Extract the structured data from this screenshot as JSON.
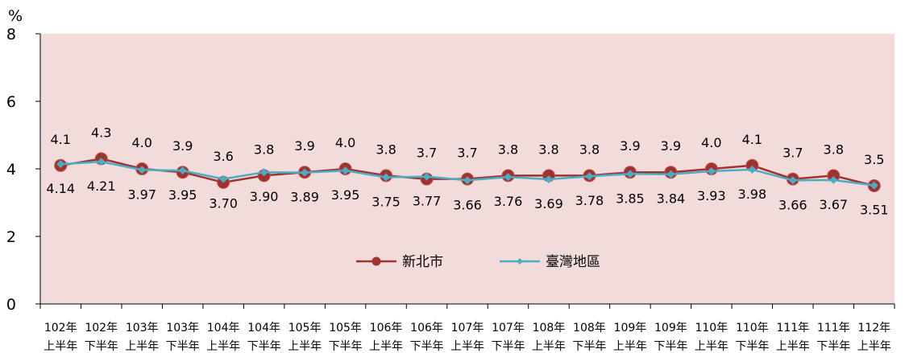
{
  "chart_data": {
    "type": "line",
    "unit": "%",
    "ylim": [
      0,
      8
    ],
    "yticks": [
      0,
      2,
      4,
      6,
      8
    ],
    "legend_position": "center",
    "categories": [
      [
        "102年",
        "上半年"
      ],
      [
        "102年",
        "下半年"
      ],
      [
        "103年",
        "上半年"
      ],
      [
        "103年",
        "下半年"
      ],
      [
        "104年",
        "上半年"
      ],
      [
        "104年",
        "下半年"
      ],
      [
        "105年",
        "上半年"
      ],
      [
        "105年",
        "下半年"
      ],
      [
        "106年",
        "上半年"
      ],
      [
        "106年",
        "下半年"
      ],
      [
        "107年",
        "上半年"
      ],
      [
        "107年",
        "下半年"
      ],
      [
        "108年",
        "上半年"
      ],
      [
        "108年",
        "下半年"
      ],
      [
        "109年",
        "上半年"
      ],
      [
        "109年",
        "下半年"
      ],
      [
        "110年",
        "上半年"
      ],
      [
        "110年",
        "下半年"
      ],
      [
        "111年",
        "上半年"
      ],
      [
        "111年",
        "下半年"
      ],
      [
        "112年",
        "上半年"
      ]
    ],
    "series": [
      {
        "name": "新北市",
        "color": "#a0322e",
        "label_position": "above",
        "values": [
          4.1,
          4.3,
          4.0,
          3.9,
          3.6,
          3.8,
          3.9,
          4.0,
          3.8,
          3.7,
          3.7,
          3.8,
          3.8,
          3.8,
          3.9,
          3.9,
          4.0,
          4.1,
          3.7,
          3.8,
          3.5
        ],
        "labels": [
          "4.1",
          "4.3",
          "4.0",
          "3.9",
          "3.6",
          "3.8",
          "3.9",
          "4.0",
          "3.8",
          "3.7",
          "3.7",
          "3.8",
          "3.8",
          "3.8",
          "3.9",
          "3.9",
          "4.0",
          "4.1",
          "3.7",
          "3.8",
          "3.5"
        ]
      },
      {
        "name": "臺灣地區",
        "color": "#4bacc6",
        "label_position": "below",
        "values": [
          4.14,
          4.21,
          3.97,
          3.95,
          3.7,
          3.9,
          3.89,
          3.95,
          3.75,
          3.77,
          3.66,
          3.76,
          3.69,
          3.78,
          3.85,
          3.84,
          3.93,
          3.98,
          3.66,
          3.67,
          3.51
        ],
        "labels": [
          "4.14",
          "4.21",
          "3.97",
          "3.95",
          "3.70",
          "3.90",
          "3.89",
          "3.95",
          "3.75",
          "3.77",
          "3.66",
          "3.76",
          "3.69",
          "3.78",
          "3.85",
          "3.84",
          "3.93",
          "3.98",
          "3.66",
          "3.67",
          "3.51"
        ]
      }
    ],
    "plot_background": "#f2dcdb"
  }
}
